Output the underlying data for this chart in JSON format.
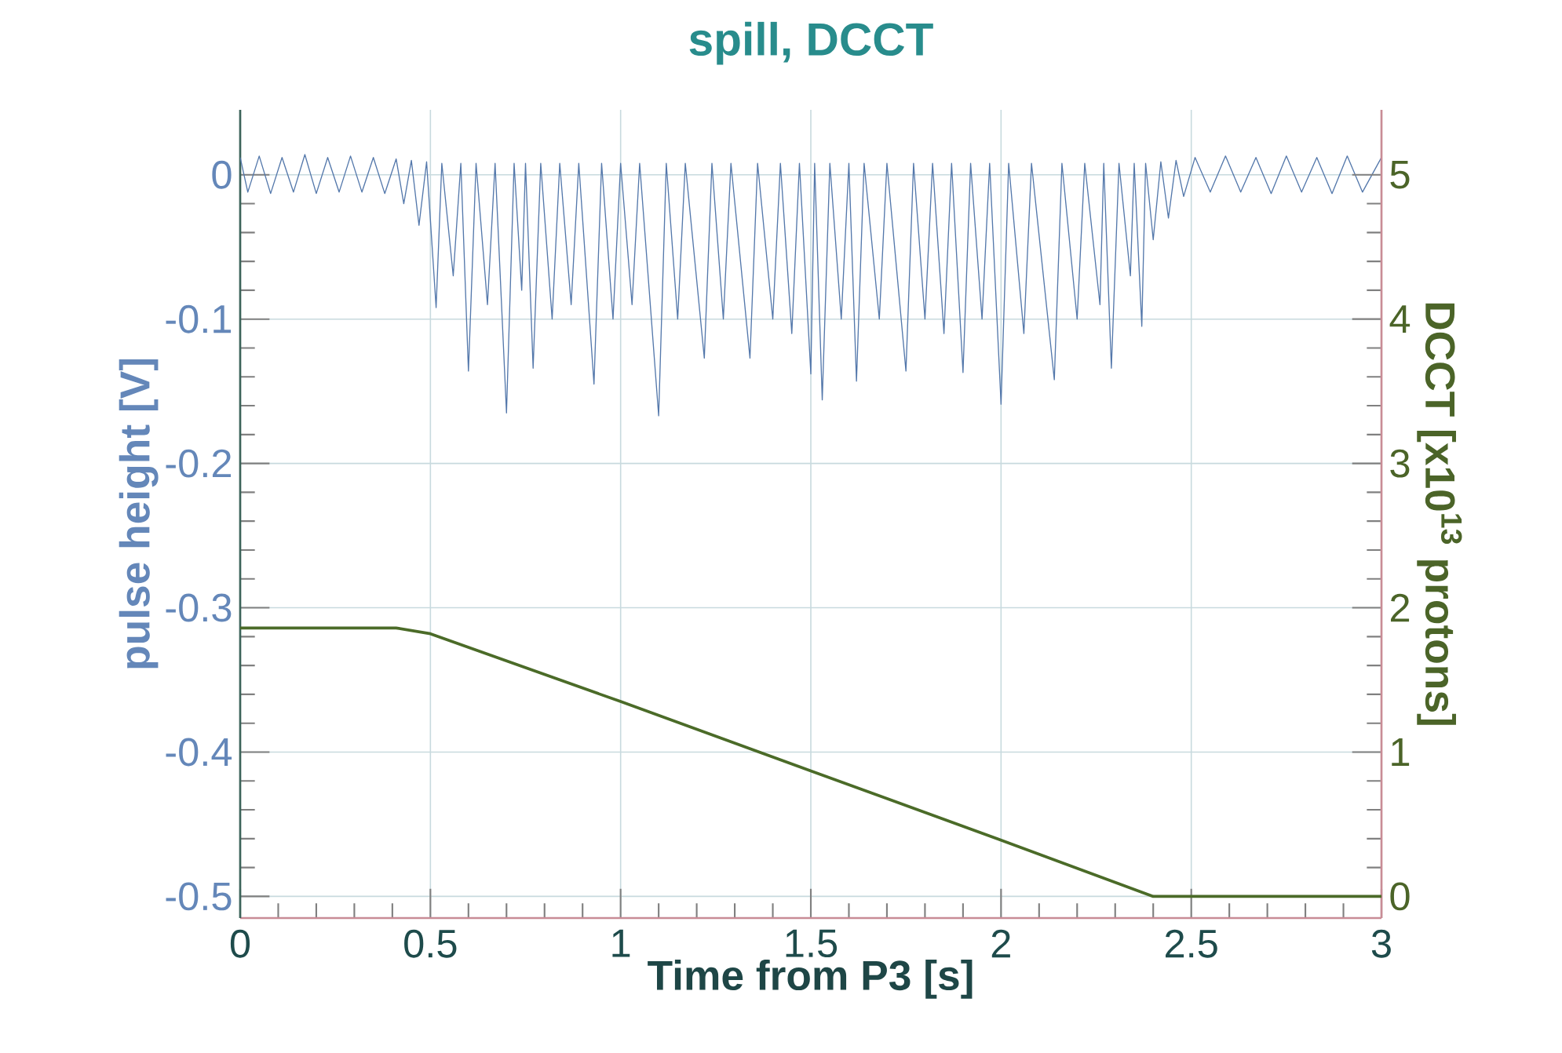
{
  "chart_data": {
    "type": "line",
    "title": "spill, DCCT",
    "xlabel": "Time from P3 [s]",
    "ylabel": "pulse height [V]",
    "y2label": "DCCT [x10$^{13}$ protons]",
    "xlim": [
      0,
      3
    ],
    "xticks": [
      0,
      0.5,
      1,
      1.5,
      2,
      2.5,
      3
    ],
    "ylim": [
      -0.515,
      0.045
    ],
    "yticks": [
      0,
      -0.1,
      -0.2,
      -0.3,
      -0.4,
      -0.5
    ],
    "y2lim": [
      -0.15,
      5.45
    ],
    "y2ticks": [
      0,
      1,
      2,
      3,
      4,
      5
    ],
    "grid": true,
    "series": [
      {
        "color": "#5478ab",
        "axis": "y",
        "x": [
          0.0,
          0.02,
          0.05,
          0.08,
          0.11,
          0.14,
          0.17,
          0.2,
          0.23,
          0.26,
          0.29,
          0.32,
          0.35,
          0.38,
          0.41,
          0.43,
          0.45,
          0.47,
          0.49,
          0.515,
          0.53,
          0.56,
          0.58,
          0.6,
          0.62,
          0.65,
          0.67,
          0.7,
          0.72,
          0.74,
          0.75,
          0.77,
          0.79,
          0.82,
          0.84,
          0.87,
          0.89,
          0.93,
          0.95,
          0.98,
          1.0,
          1.03,
          1.05,
          1.1,
          1.12,
          1.15,
          1.17,
          1.22,
          1.24,
          1.27,
          1.29,
          1.34,
          1.36,
          1.4,
          1.42,
          1.45,
          1.47,
          1.5,
          1.51,
          1.53,
          1.55,
          1.58,
          1.6,
          1.62,
          1.64,
          1.68,
          1.7,
          1.75,
          1.77,
          1.8,
          1.82,
          1.85,
          1.87,
          1.9,
          1.92,
          1.95,
          1.97,
          2.0,
          2.02,
          2.06,
          2.08,
          2.14,
          2.16,
          2.2,
          2.22,
          2.26,
          2.27,
          2.29,
          2.31,
          2.34,
          2.35,
          2.37,
          2.38,
          2.4,
          2.42,
          2.44,
          2.46,
          2.48,
          2.51,
          2.55,
          2.59,
          2.63,
          2.67,
          2.71,
          2.75,
          2.79,
          2.83,
          2.87,
          2.91,
          2.95,
          3.0
        ],
        "values": [
          0.012,
          -0.012,
          0.013,
          -0.013,
          0.012,
          -0.012,
          0.014,
          -0.013,
          0.012,
          -0.012,
          0.013,
          -0.012,
          0.012,
          -0.013,
          0.011,
          -0.02,
          0.01,
          -0.035,
          0.009,
          -0.092,
          0.008,
          -0.07,
          0.008,
          -0.136,
          0.008,
          -0.09,
          0.008,
          -0.165,
          0.008,
          -0.08,
          0.008,
          -0.134,
          0.008,
          -0.1,
          0.008,
          -0.09,
          0.008,
          -0.145,
          0.008,
          -0.1,
          0.008,
          -0.09,
          0.008,
          -0.167,
          0.008,
          -0.1,
          0.008,
          -0.127,
          0.008,
          -0.1,
          0.008,
          -0.127,
          0.008,
          -0.1,
          0.008,
          -0.11,
          0.008,
          -0.138,
          0.008,
          -0.156,
          0.008,
          -0.1,
          0.008,
          -0.143,
          0.008,
          -0.1,
          0.008,
          -0.136,
          0.008,
          -0.1,
          0.008,
          -0.11,
          0.008,
          -0.137,
          0.008,
          -0.1,
          0.008,
          -0.159,
          0.008,
          -0.11,
          0.008,
          -0.142,
          0.008,
          -0.1,
          0.008,
          -0.09,
          0.008,
          -0.134,
          0.008,
          -0.07,
          0.008,
          -0.105,
          0.008,
          -0.045,
          0.009,
          -0.03,
          0.01,
          -0.015,
          0.012,
          -0.012,
          0.013,
          -0.012,
          0.012,
          -0.013,
          0.013,
          -0.012,
          0.012,
          -0.013,
          0.013,
          -0.012,
          0.012
        ]
      },
      {
        "color": "#4b6b28",
        "axis": "y2",
        "x": [
          0,
          0.41,
          0.5,
          1,
          1.5,
          2,
          2.4,
          3
        ],
        "values": [
          1.86,
          1.86,
          1.82,
          1.35,
          0.87,
          0.39,
          0.0,
          0.0
        ]
      }
    ]
  }
}
